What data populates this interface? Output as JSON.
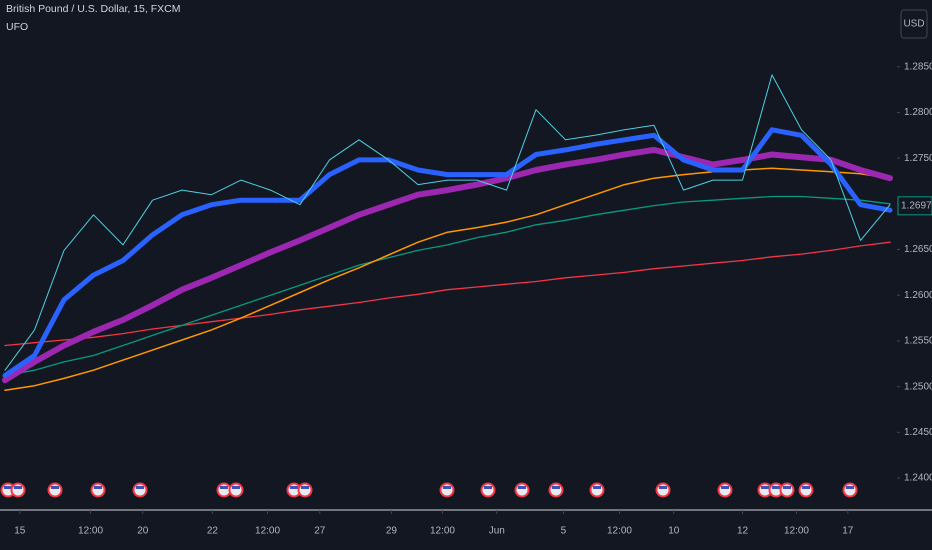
{
  "chart_data": {
    "type": "line",
    "title": "British Pound / U.S. Dollar, 15, FXCM",
    "subtitle": "UFO",
    "currency": "USD",
    "x": [
      0,
      1,
      2,
      3,
      4,
      5,
      6,
      7,
      8,
      9,
      10,
      11,
      12,
      13,
      14,
      15,
      16,
      17,
      18,
      19,
      20,
      21,
      22,
      23,
      24,
      25,
      26,
      27,
      28,
      29,
      30
    ],
    "xlim": [
      0,
      30
    ],
    "xticks": [
      {
        "value": 0.5,
        "label": "15"
      },
      {
        "value": 2.9,
        "label": "12:00"
      },
      {
        "value": 4.67,
        "label": "20"
      },
      {
        "value": 7.03,
        "label": "22"
      },
      {
        "value": 8.9,
        "label": "12:00"
      },
      {
        "value": 10.67,
        "label": "27"
      },
      {
        "value": 13.1,
        "label": "29"
      },
      {
        "value": 14.83,
        "label": "12:00"
      },
      {
        "value": 16.67,
        "label": "Jun"
      },
      {
        "value": 18.93,
        "label": "5"
      },
      {
        "value": 20.83,
        "label": "12:00"
      },
      {
        "value": 22.67,
        "label": "10"
      },
      {
        "value": 25,
        "label": "12"
      },
      {
        "value": 26.83,
        "label": "12:00"
      },
      {
        "value": 28.57,
        "label": "17"
      }
    ],
    "ylim": [
      1.2365,
      1.2923
    ],
    "yticks": [
      {
        "value": 1.285,
        "label": "1.28500"
      },
      {
        "value": 1.28,
        "label": "1.28000"
      },
      {
        "value": 1.275,
        "label": "1.27500"
      },
      {
        "value": 1.27,
        "label": "1.27000"
      },
      {
        "value": 1.265,
        "label": "1.26500"
      },
      {
        "value": 1.26,
        "label": "1.26000"
      },
      {
        "value": 1.255,
        "label": "1.25500"
      },
      {
        "value": 1.25,
        "label": "1.25000"
      },
      {
        "value": 1.245,
        "label": "1.24500"
      },
      {
        "value": 1.24,
        "label": "1.24000"
      }
    ],
    "price_label": {
      "value": 1.26978,
      "label": "1.26978"
    },
    "series": [
      {
        "color": "#f23645",
        "values": [
          1.2545,
          1.2548,
          1.2551,
          1.2554,
          1.2558,
          1.2563,
          1.2567,
          1.2571,
          1.2575,
          1.2579,
          1.2584,
          1.2588,
          1.2592,
          1.2597,
          1.2601,
          1.2606,
          1.2609,
          1.2612,
          1.2615,
          1.2619,
          1.2622,
          1.2625,
          1.2629,
          1.2632,
          1.2635,
          1.2638,
          1.2642,
          1.2645,
          1.2649,
          1.2654,
          1.2658
        ]
      },
      {
        "color": "#089981",
        "values": [
          1.2512,
          1.2518,
          1.2527,
          1.2534,
          1.2545,
          1.2556,
          1.2567,
          1.2578,
          1.2589,
          1.26,
          1.2611,
          1.2622,
          1.2633,
          1.2641,
          1.2649,
          1.2655,
          1.2663,
          1.2669,
          1.2677,
          1.2682,
          1.2688,
          1.2693,
          1.2698,
          1.2702,
          1.2704,
          1.2706,
          1.2708,
          1.2708,
          1.2706,
          1.2704,
          1.27
        ]
      },
      {
        "color": "#ff9800",
        "values": [
          1.2496,
          1.2501,
          1.2509,
          1.2518,
          1.2529,
          1.254,
          1.2551,
          1.2562,
          1.2575,
          1.2589,
          1.2603,
          1.2617,
          1.263,
          1.2644,
          1.2658,
          1.2669,
          1.2674,
          1.268,
          1.2688,
          1.2699,
          1.271,
          1.2721,
          1.2728,
          1.2732,
          1.2735,
          1.2737,
          1.2739,
          1.2737,
          1.2735,
          1.2733,
          1.2728
        ]
      },
      {
        "color": "#9c27b0",
        "values": [
          1.2507,
          1.2527,
          1.2545,
          1.256,
          1.2573,
          1.2589,
          1.2606,
          1.2619,
          1.2633,
          1.2647,
          1.266,
          1.2674,
          1.2688,
          1.2699,
          1.271,
          1.2715,
          1.2721,
          1.2728,
          1.2737,
          1.2743,
          1.2748,
          1.2754,
          1.2759,
          1.2751,
          1.2743,
          1.2748,
          1.2754,
          1.2751,
          1.2748,
          1.2737,
          1.2728
        ]
      },
      {
        "color": "#2962ff",
        "values": [
          1.2512,
          1.2534,
          1.2595,
          1.2622,
          1.2638,
          1.2666,
          1.2688,
          1.2699,
          1.2704,
          1.2704,
          1.2704,
          1.2732,
          1.2748,
          1.2748,
          1.2737,
          1.2732,
          1.2732,
          1.2732,
          1.2754,
          1.2759,
          1.2765,
          1.277,
          1.2775,
          1.2748,
          1.2737,
          1.2737,
          1.2781,
          1.2775,
          1.2743,
          1.2699,
          1.2693
        ]
      },
      {
        "color": "#4dd0e1",
        "values": [
          1.2518,
          1.2562,
          1.2649,
          1.2688,
          1.2655,
          1.2704,
          1.2715,
          1.271,
          1.2726,
          1.2715,
          1.2699,
          1.2748,
          1.277,
          1.2748,
          1.2721,
          1.2726,
          1.2726,
          1.2715,
          1.2803,
          1.277,
          1.2775,
          1.2781,
          1.2786,
          1.2715,
          1.2726,
          1.2726,
          1.2841,
          1.2781,
          1.2748,
          1.266,
          1.2699
        ]
      }
    ]
  }
}
